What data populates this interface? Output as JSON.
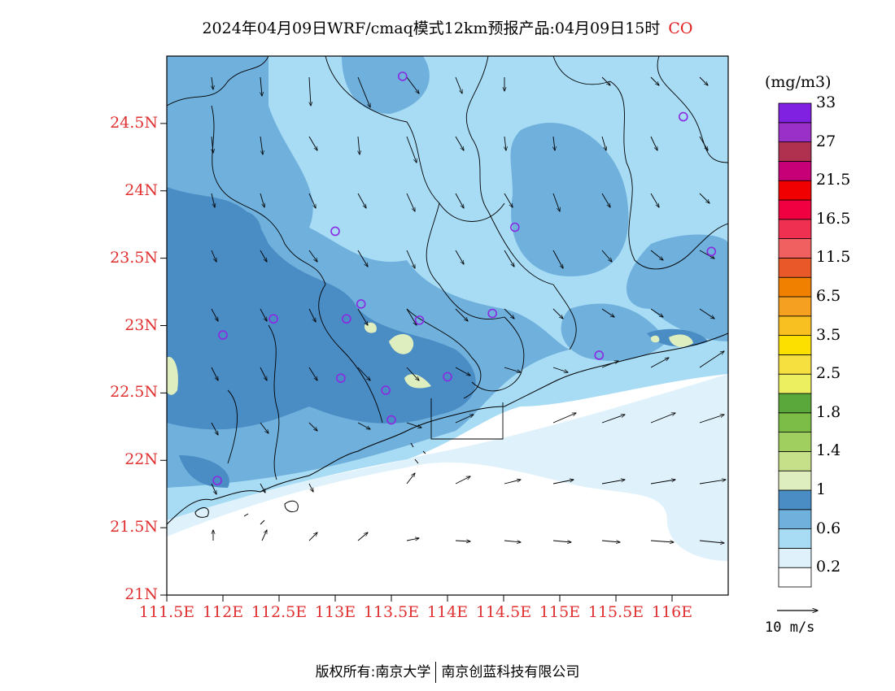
{
  "title": "2024年04月09日WRF/cmaq模式12km预报产品:04月09日15时",
  "species": "CO",
  "units": "(mg/m3)",
  "colors": {
    "title_species": "#e02020",
    "axis_labels": "#e03030",
    "station_marker": "#8a2be2"
  },
  "axes": {
    "lat_labels": [
      "24.5N",
      "24N",
      "23.5N",
      "23N",
      "22.5N",
      "22N",
      "21.5N",
      "21N"
    ],
    "lon_labels": [
      "111.5E",
      "112E",
      "112.5E",
      "113E",
      "113.5E",
      "114E",
      "114.5E",
      "115E",
      "115.5E",
      "116E"
    ],
    "lat_range": [
      21,
      25
    ],
    "lon_range": [
      111.5,
      116.5
    ]
  },
  "colorbar": {
    "colors": [
      "#ffffff",
      "#dff2fc",
      "#a8dcf5",
      "#6fb0dc",
      "#4a8cc4",
      "#dfeebf",
      "#c6e08a",
      "#a0cf60",
      "#7cbd48",
      "#5aa83c",
      "#ecf060",
      "#f5e040",
      "#fce000",
      "#f8c020",
      "#f5a020",
      "#f08000",
      "#e85828",
      "#f06060",
      "#f03050",
      "#f00040",
      "#f00000",
      "#c80078",
      "#b03050",
      "#9a30c8",
      "#8020e0"
    ],
    "labels": [
      "0.2",
      "0.6",
      "1",
      "1.4",
      "1.8",
      "2.5",
      "3.5",
      "6.5",
      "11.5",
      "16.5",
      "21.5",
      "27",
      "33"
    ]
  },
  "reference_vector": "10 m/s",
  "stations": [
    {
      "lon": 113.6,
      "lat": 24.85
    },
    {
      "lon": 116.1,
      "lat": 24.55
    },
    {
      "lon": 113.0,
      "lat": 23.7
    },
    {
      "lon": 114.6,
      "lat": 23.73
    },
    {
      "lon": 116.35,
      "lat": 23.55
    },
    {
      "lon": 112.45,
      "lat": 23.05
    },
    {
      "lon": 113.1,
      "lat": 23.05
    },
    {
      "lon": 113.23,
      "lat": 23.16
    },
    {
      "lon": 113.75,
      "lat": 23.04
    },
    {
      "lon": 114.4,
      "lat": 23.09
    },
    {
      "lon": 112.0,
      "lat": 22.93
    },
    {
      "lon": 115.35,
      "lat": 22.78
    },
    {
      "lon": 113.05,
      "lat": 22.61
    },
    {
      "lon": 113.45,
      "lat": 22.52
    },
    {
      "lon": 114.0,
      "lat": 22.62
    },
    {
      "lon": 113.5,
      "lat": 22.3
    },
    {
      "lon": 111.95,
      "lat": 21.85
    }
  ],
  "footer": {
    "left": "版权所有:南京大学",
    "right": "南京创蓝科技有限公司"
  }
}
